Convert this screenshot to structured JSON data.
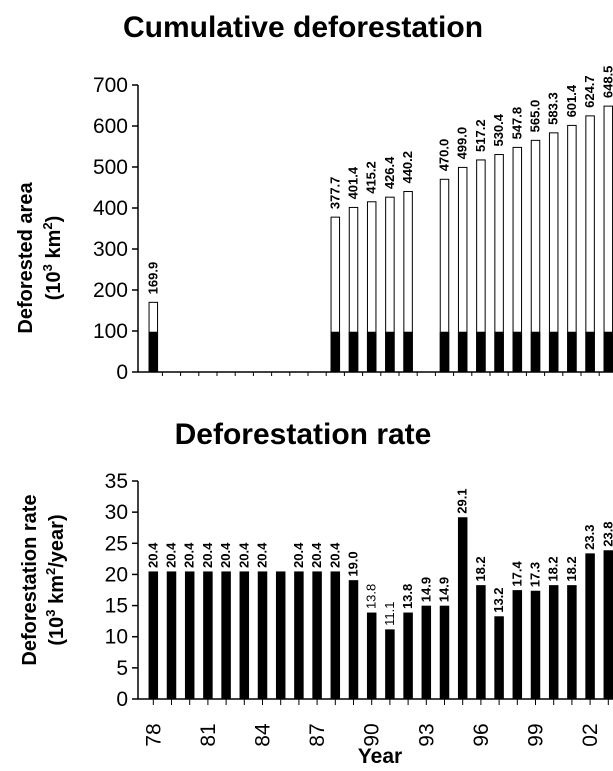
{
  "chart_data": [
    {
      "type": "bar",
      "title": "Cumulative deforestation",
      "ylabel_line1": "Deforested area",
      "ylabel_line2_base": "10",
      "ylabel_line2_sup1": "3",
      "ylabel_line2_mid": " km",
      "ylabel_line2_sup2": "2",
      "ylabel_line2_end": ")",
      "ylabel_line2_start": "(",
      "ylim": [
        0,
        700
      ],
      "yticks": [
        "0",
        "100",
        "200",
        "300",
        "400",
        "500",
        "600",
        "700"
      ],
      "ytick_values": [
        0,
        100,
        200,
        300,
        400,
        500,
        600,
        700
      ],
      "x": [
        78,
        79,
        80,
        81,
        82,
        83,
        84,
        85,
        86,
        87,
        88,
        89,
        90,
        91,
        92,
        93,
        94,
        95,
        96,
        97,
        98,
        99,
        100,
        101,
        102,
        103
      ],
      "series": [
        {
          "name": "",
          "color": "#000000",
          "values": [
            97.0,
            null,
            null,
            null,
            null,
            null,
            null,
            null,
            null,
            null,
            97.0,
            97.0,
            97.0,
            97.0,
            97.0,
            null,
            97.0,
            97.0,
            97.0,
            97.0,
            97.0,
            97.0,
            97.0,
            97.0,
            97.0,
            97.0
          ]
        },
        {
          "name": "",
          "color": "#ffffff",
          "values": [
            169.9,
            null,
            null,
            null,
            null,
            null,
            null,
            null,
            null,
            null,
            377.7,
            401.4,
            415.2,
            426.4,
            440.2,
            null,
            470.0,
            499.0,
            517.2,
            530.4,
            547.8,
            565.0,
            583.3,
            601.4,
            624.7,
            648.5
          ]
        }
      ],
      "labels": [
        "169.9",
        null,
        null,
        null,
        null,
        null,
        null,
        null,
        null,
        null,
        "377.7",
        "401.4",
        "415.2",
        "426.4",
        "440.2",
        null,
        "470.0",
        "499.0",
        "517.2",
        "530.4",
        "547.8",
        "565.0",
        "583.3",
        "601.4",
        "624.7",
        "648.5"
      ],
      "grid": false
    },
    {
      "type": "bar",
      "title": "Deforestation rate",
      "ylabel_line1": "Deforestation rate",
      "ylabel_line2_start": "(",
      "ylabel_line2_base": "10",
      "ylabel_line2_sup1": "3",
      "ylabel_line2_mid": " km",
      "ylabel_line2_sup2": "2",
      "ylabel_line2_end": "/year)",
      "xlabel": "Year",
      "ylim": [
        0,
        35
      ],
      "yticks": [
        "0",
        "5",
        "10",
        "15",
        "20",
        "25",
        "30",
        "35"
      ],
      "ytick_values": [
        0,
        5,
        10,
        15,
        20,
        25,
        30,
        35
      ],
      "xticks": [
        "78",
        "81",
        "84",
        "87",
        "90",
        "93",
        "96",
        "99",
        "02"
      ],
      "xtick_positions": [
        78,
        81,
        84,
        87,
        90,
        93,
        96,
        99,
        102
      ],
      "x": [
        78,
        79,
        80,
        81,
        82,
        83,
        84,
        85,
        86,
        87,
        88,
        89,
        90,
        91,
        92,
        93,
        94,
        95,
        96,
        97,
        98,
        99,
        100,
        101,
        102,
        103
      ],
      "values": [
        20.4,
        20.4,
        20.4,
        20.4,
        20.4,
        20.4,
        20.4,
        20.4,
        20.4,
        20.4,
        20.4,
        19.0,
        13.8,
        11.1,
        13.8,
        14.9,
        14.9,
        29.1,
        18.2,
        13.2,
        17.4,
        17.3,
        18.2,
        18.2,
        23.3,
        23.8
      ],
      "labels": [
        "20.4",
        "20.4",
        "20.4",
        "20.4",
        "20.4",
        "20.4",
        "20.4",
        null,
        "20.4",
        "20.4",
        "20.4",
        "19.0",
        "13.8",
        "11.1",
        "13.8",
        "14.9",
        "14.9",
        "29.1",
        "18.2",
        "13.2",
        "17.4",
        "17.3",
        "18.2",
        "18.2",
        "23.3",
        "23.8"
      ],
      "label_bold": [
        true,
        true,
        true,
        true,
        true,
        true,
        true,
        false,
        true,
        true,
        true,
        true,
        false,
        false,
        true,
        true,
        true,
        true,
        true,
        true,
        true,
        true,
        true,
        true,
        true,
        true
      ],
      "color": "#000000",
      "grid": false
    }
  ]
}
